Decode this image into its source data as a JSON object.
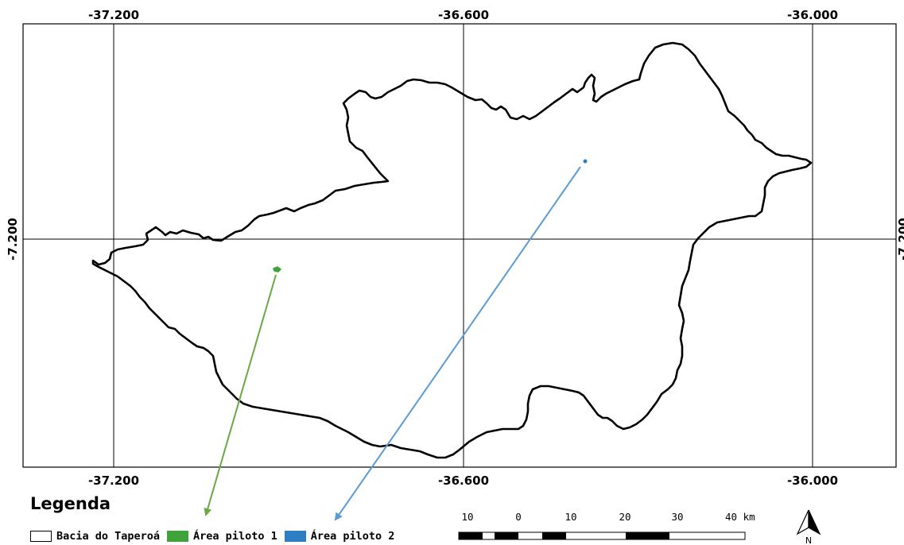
{
  "map": {
    "top_lon_labels": [
      "-37.200",
      "-36.600",
      "-36.000"
    ],
    "bottom_lon_labels": [
      "-37.200",
      "-36.600",
      "-36.000"
    ],
    "left_lat_label": "-7.200",
    "right_lat_label": "-7.200"
  },
  "legend": {
    "title": "Legenda",
    "items": [
      {
        "label": "Bacia do Taperoá",
        "fill": "#ffffff",
        "stroke": "#000000"
      },
      {
        "label": "Área piloto 1",
        "fill": "#3ea43a",
        "stroke": "#3ea43a"
      },
      {
        "label": "Área piloto 2",
        "fill": "#2f7dc2",
        "stroke": "#2f7dc2"
      }
    ]
  },
  "scale_bar": {
    "labels": [
      "10",
      "0",
      "10",
      "20",
      "30",
      "40 km"
    ]
  },
  "north_arrow": {
    "label": "N"
  },
  "colors": {
    "arrow_area1": "#6aa844",
    "arrow_area2": "#5b9bd5",
    "area1": "#3ea43a",
    "area2": "#2f7dc2"
  }
}
